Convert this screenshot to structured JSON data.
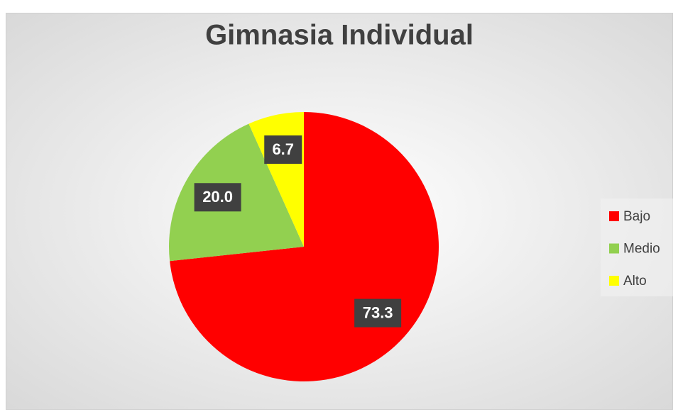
{
  "chart_data": {
    "type": "pie",
    "title": "Gimnasia Individual",
    "categories": [
      "Bajo",
      "Medio",
      "Alto"
    ],
    "values": [
      73.3,
      20.0,
      6.7
    ],
    "value_labels": [
      "73.3",
      "20.0",
      "6.7"
    ],
    "colors": [
      "#ff0000",
      "#92d050",
      "#ffff00"
    ],
    "legend": "right"
  }
}
